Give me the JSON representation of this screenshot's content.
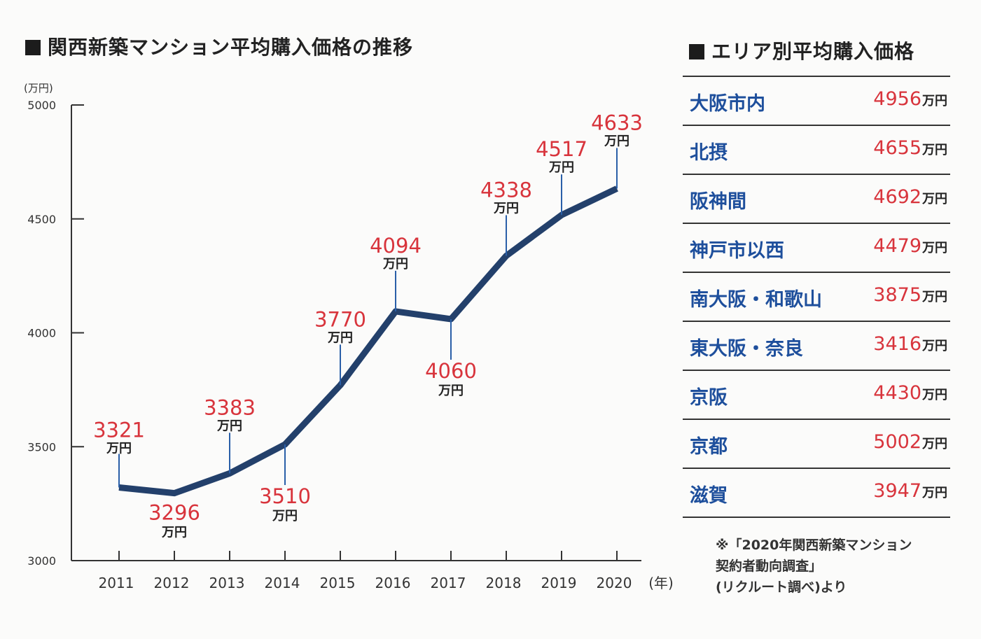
{
  "chart_title": "関西新築マンション平均購入価格の推移",
  "table_title": "エリア別平均購入価格",
  "chart_data": {
    "type": "line",
    "title": "関西新築マンション平均購入価格の推移",
    "y_unit": "(万円)",
    "x_unit": "(年)",
    "value_unit": "万円",
    "x": [
      "2011",
      "2012",
      "2013",
      "2014",
      "2015",
      "2016",
      "2017",
      "2018",
      "2019",
      "2020"
    ],
    "values": [
      3321,
      3296,
      3383,
      3510,
      3770,
      4094,
      4060,
      4338,
      4517,
      4633
    ],
    "value_labels": [
      "3321",
      "3296",
      "3383",
      "3510",
      "3770",
      "4094",
      "4060",
      "4338",
      "4517",
      "4633"
    ],
    "label_positions": [
      "above",
      "below",
      "above",
      "below",
      "above",
      "above",
      "below",
      "above",
      "above",
      "above"
    ],
    "ylim": [
      3000,
      5000
    ],
    "yticks": [
      "3000",
      "3500",
      "4000",
      "4500",
      "5000"
    ],
    "line_color": "#23406b",
    "value_color": "#d8343c"
  },
  "area_table": {
    "unit": "万円",
    "rows": [
      {
        "name": "大阪市内",
        "price": "4956"
      },
      {
        "name": "北摂",
        "price": "4655"
      },
      {
        "name": "阪神間",
        "price": "4692"
      },
      {
        "name": "神戸市以西",
        "price": "4479"
      },
      {
        "name": "南大阪・和歌山",
        "price": "3875"
      },
      {
        "name": "東大阪・奈良",
        "price": "3416"
      },
      {
        "name": "京阪",
        "price": "4430"
      },
      {
        "name": "京都",
        "price": "5002"
      },
      {
        "name": "滋賀",
        "price": "3947"
      }
    ]
  },
  "source_note": {
    "line1": "※「2020年関西新築マンション",
    "line2": "契約者動向調査」",
    "line3": "(リクルート調べ)より"
  }
}
